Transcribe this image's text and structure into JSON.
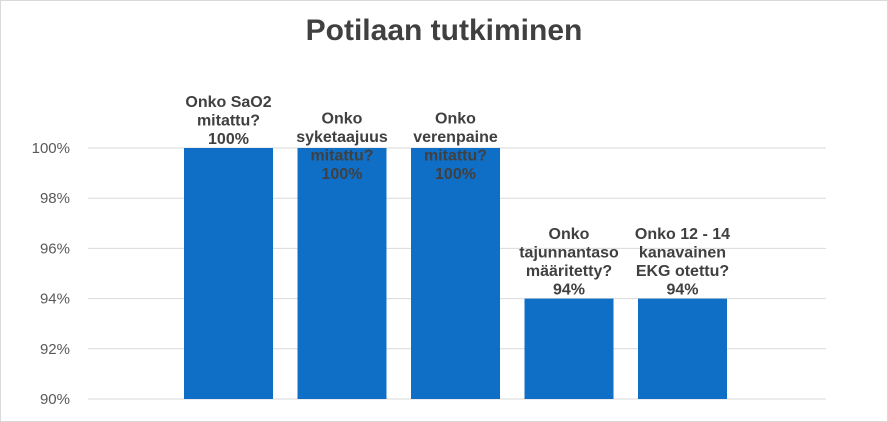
{
  "chart_data": {
    "type": "bar",
    "title": "Potilaan tutkiminen",
    "categories": [
      "Onko SaO2 mitattu?",
      "Onko syketaajuus mitattu?",
      "Onko verenpaine mitattu?",
      "Onko tajunnantaso määritetty?",
      "Onko 12 - 14 kanavainen EKG otettu?"
    ],
    "values": [
      100,
      100,
      100,
      94,
      94
    ],
    "data_labels": [
      [
        "Onko SaO2",
        "mitattu?",
        "100%"
      ],
      [
        "Onko",
        "syketaajuus",
        "mitattu?",
        "100%"
      ],
      [
        "Onko",
        "verenpaine",
        "mitattu?",
        "100%"
      ],
      [
        "Onko",
        "tajunnantaso",
        "määritetty?",
        "94%"
      ],
      [
        "Onko 12 - 14",
        "kanavainen",
        "EKG otettu?",
        "94%"
      ]
    ],
    "ytick_labels": [
      "90%",
      "92%",
      "94%",
      "96%",
      "98%",
      "100%"
    ],
    "ylim": [
      90,
      100
    ],
    "yticks": [
      90,
      92,
      94,
      96,
      98,
      100
    ],
    "grid": true,
    "bar_color": "#0f6fc6",
    "xlabel": "",
    "ylabel": ""
  }
}
